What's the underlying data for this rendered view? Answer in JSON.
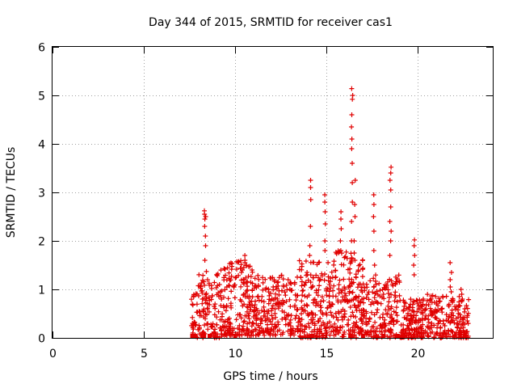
{
  "chart_data": {
    "type": "scatter",
    "title": "Day 344 of 2015, SRMTID for receiver cas1",
    "xlabel": "GPS time / hours",
    "ylabel": "SRMTID / TECUs",
    "xlim": [
      0,
      24.1
    ],
    "ylim": [
      0,
      6
    ],
    "xticks": [
      0,
      5,
      10,
      15,
      20
    ],
    "yticks": [
      0,
      1,
      2,
      3,
      4,
      5,
      6
    ],
    "grid": true,
    "legend": "none",
    "marker": "+",
    "marker_color": "#e00000",
    "series": [
      {
        "name": "cas1",
        "clusters": [
          {
            "x_start": 7.6,
            "x_end": 8.0,
            "y_min": 0.0,
            "y_max": 1.1,
            "count": 30
          },
          {
            "x_start": 8.0,
            "x_end": 9.3,
            "y_min": 0.0,
            "y_max": 1.4,
            "count": 120
          },
          {
            "x_start": 9.3,
            "x_end": 11.0,
            "y_min": 0.05,
            "y_max": 1.6,
            "count": 180
          },
          {
            "x_start": 11.0,
            "x_end": 13.5,
            "y_min": 0.05,
            "y_max": 1.3,
            "count": 220
          },
          {
            "x_start": 13.5,
            "x_end": 15.5,
            "y_min": 0.0,
            "y_max": 1.6,
            "count": 200
          },
          {
            "x_start": 15.5,
            "x_end": 17.0,
            "y_min": 0.0,
            "y_max": 1.8,
            "count": 170
          },
          {
            "x_start": 17.0,
            "x_end": 19.0,
            "y_min": 0.0,
            "y_max": 1.3,
            "count": 170
          },
          {
            "x_start": 19.0,
            "x_end": 20.5,
            "y_min": 0.0,
            "y_max": 0.8,
            "count": 150
          },
          {
            "x_start": 20.5,
            "x_end": 22.8,
            "y_min": 0.0,
            "y_max": 0.9,
            "count": 200
          }
        ],
        "spikes": [
          {
            "x": 8.35,
            "y_values": [
              1.6,
              1.9,
              2.1,
              2.3,
              2.45,
              2.55,
              2.62,
              2.5
            ]
          },
          {
            "x": 10.5,
            "y_values": [
              1.2,
              1.45,
              1.6,
              1.7,
              1.55
            ]
          },
          {
            "x": 14.1,
            "y_values": [
              2.3,
              2.85,
              3.1,
              3.25,
              1.7,
              1.9
            ]
          },
          {
            "x": 14.9,
            "y_values": [
              2.0,
              2.35,
              2.6,
              2.8,
              2.95,
              1.8
            ]
          },
          {
            "x": 15.8,
            "y_values": [
              2.0,
              2.25,
              2.45,
              2.6,
              1.8
            ]
          },
          {
            "x": 16.4,
            "y_values": [
              1.6,
              2.0,
              2.4,
              2.8,
              3.2,
              3.6,
              3.9,
              4.1,
              4.35,
              4.6,
              4.92,
              5.0,
              5.14
            ]
          },
          {
            "x": 16.55,
            "y_values": [
              2.0,
              2.5,
              2.75,
              3.25,
              1.6
            ]
          },
          {
            "x": 17.6,
            "y_values": [
              1.8,
              2.2,
              2.5,
              2.75,
              2.95,
              1.5
            ]
          },
          {
            "x": 18.5,
            "y_values": [
              1.7,
              2.2,
              2.4,
              2.7,
              3.05,
              3.25,
              3.4,
              3.52,
              2.0
            ]
          },
          {
            "x": 19.8,
            "y_values": [
              1.3,
              1.5,
              1.7,
              1.9,
              2.02
            ]
          },
          {
            "x": 21.8,
            "y_values": [
              1.05,
              1.2,
              1.35,
              1.55,
              0.95
            ]
          },
          {
            "x": 22.4,
            "y_values": [
              0.9,
              1.0,
              0.8
            ]
          }
        ],
        "baseline_markers_x": [
          7.65,
          7.8,
          8.2,
          8.3,
          8.6,
          10.0,
          14.2,
          16.3,
          17.0,
          18.1,
          18.9
        ]
      }
    ]
  }
}
